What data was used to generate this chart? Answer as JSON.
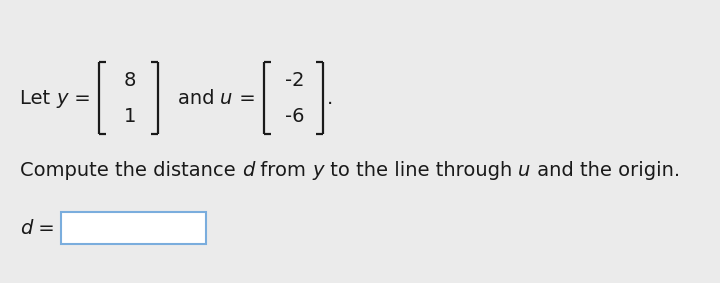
{
  "bg_color": "#ebebeb",
  "text_color": "#1a1a1a",
  "y_vec": [
    "8",
    "1"
  ],
  "u_vec": [
    "-2",
    "-6"
  ],
  "input_box_color": "#ffffff",
  "input_box_border": "#7aaddd",
  "font_size_main": 14,
  "font_size_vec": 14
}
